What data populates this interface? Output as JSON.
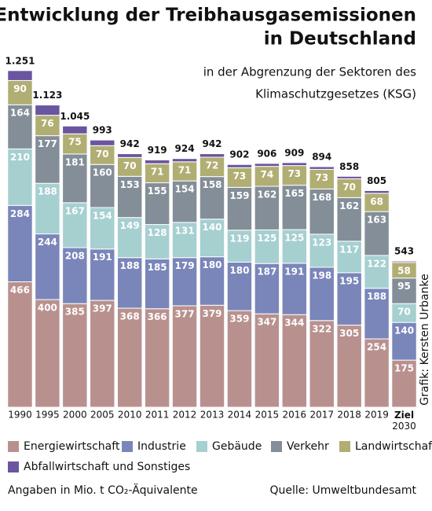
{
  "chart_data": {
    "type": "stacked_bar",
    "title": [
      "Entwicklung der Treibhausgasemissionen",
      "in Deutschland"
    ],
    "subtitle": [
      "in der Abgrenzung der Sektoren des",
      "Klimaschutzgesetzes (KSG)"
    ],
    "categories": [
      "1990",
      "1995",
      "2000",
      "2005",
      "2010",
      "2011",
      "2012",
      "2013",
      "2014",
      "2015",
      "2016",
      "2017",
      "2018",
      "2019",
      "Ziel 2030"
    ],
    "series": [
      {
        "name": "Energiewirtschaft",
        "color": "#b8918f",
        "values": [
          466,
          400,
          385,
          397,
          368,
          366,
          377,
          379,
          359,
          347,
          344,
          322,
          305,
          254,
          175
        ]
      },
      {
        "name": "Industrie",
        "color": "#7a86ba",
        "values": [
          284,
          244,
          208,
          191,
          188,
          185,
          179,
          180,
          180,
          187,
          191,
          198,
          195,
          188,
          140
        ]
      },
      {
        "name": "Gebäude",
        "color": "#a6cfd0",
        "values": [
          210,
          188,
          167,
          154,
          149,
          128,
          131,
          140,
          119,
          125,
          125,
          123,
          117,
          122,
          70
        ]
      },
      {
        "name": "Verkehr",
        "color": "#848e98",
        "values": [
          164,
          177,
          181,
          160,
          153,
          155,
          154,
          158,
          159,
          162,
          165,
          168,
          162,
          163,
          95
        ]
      },
      {
        "name": "Landwirtschaft",
        "color": "#b1ae73",
        "values": [
          90,
          76,
          75,
          70,
          70,
          71,
          71,
          72,
          73,
          74,
          73,
          73,
          70,
          68,
          58
        ]
      },
      {
        "name": "Abfallwirtschaft und Sonstiges",
        "color": "#6a55a0",
        "values": [
          37,
          38,
          29,
          21,
          14,
          14,
          12,
          13,
          12,
          11,
          11,
          10,
          9,
          10,
          5
        ]
      }
    ],
    "totals": [
      1251,
      1123,
      1045,
      993,
      942,
      919,
      924,
      942,
      902,
      906,
      909,
      894,
      858,
      805,
      543
    ],
    "value_labels": [
      "1.251",
      "1.123",
      "1.045",
      "993",
      "942",
      "919",
      "924",
      "942",
      "902",
      "906",
      "909",
      "894",
      "858",
      "805",
      "543"
    ],
    "ylim": [
      0,
      1300
    ],
    "credit": "Grafik: Kersten Urbanke",
    "note": "Angaben in Mio. t CO₂-Äquivalente",
    "source": "Quelle: Umweltbundesamt"
  }
}
